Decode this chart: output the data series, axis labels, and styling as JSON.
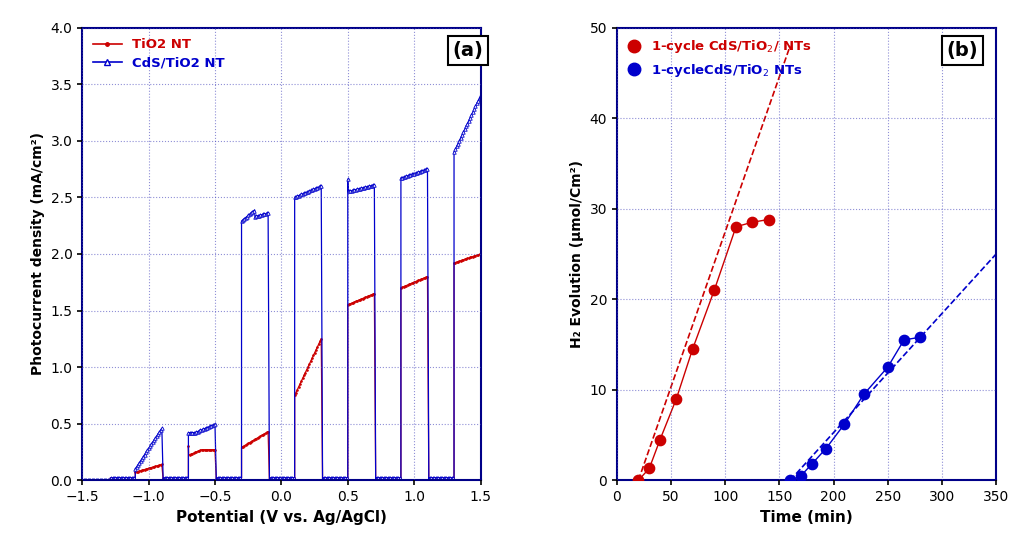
{
  "panel_a": {
    "xlabel": "Potential (V vs. Ag/AgCl)",
    "ylabel": "Photocurrent density (mA/cm²)",
    "xlim": [
      -1.5,
      1.5
    ],
    "ylim": [
      0,
      4
    ],
    "yticks": [
      0,
      0.5,
      1.0,
      1.5,
      2.0,
      2.5,
      3.0,
      3.5,
      4.0
    ],
    "xticks": [
      -1.5,
      -1.0,
      -0.5,
      0.0,
      0.5,
      1.0,
      1.5
    ],
    "red_color": "#cc0000",
    "blue_color": "#0000cc",
    "label_red": "TiO2 NT",
    "label_blue": "CdS/TiO2 NT",
    "panel_label": "(a)"
  },
  "panel_b": {
    "xlabel": "Time (min)",
    "ylabel": "H₂ Evolution (μmol/Cm²)",
    "xlim": [
      0,
      350
    ],
    "ylim": [
      0,
      50
    ],
    "yticks": [
      0,
      10,
      20,
      30,
      40,
      50
    ],
    "xticks": [
      0,
      50,
      100,
      150,
      200,
      250,
      300,
      350
    ],
    "red_x": [
      20,
      30,
      40,
      55,
      70,
      90,
      110,
      125,
      140
    ],
    "red_y": [
      0.0,
      1.3,
      4.5,
      9.0,
      14.5,
      21.0,
      28.0,
      28.5,
      28.8
    ],
    "blue_x": [
      160,
      170,
      180,
      193,
      210,
      228,
      250,
      265,
      280
    ],
    "blue_y": [
      0.0,
      0.5,
      1.8,
      3.5,
      6.2,
      9.5,
      12.5,
      15.5,
      15.8
    ],
    "red_fit_x": [
      20,
      160
    ],
    "red_fit_y": [
      0.0,
      48.0
    ],
    "blue_fit_x": [
      160,
      350
    ],
    "blue_fit_y": [
      0.0,
      25.0
    ],
    "red_color": "#cc0000",
    "blue_color": "#0000cc",
    "label_red": "1-cycle CdS/TiO$_2$/ NTs",
    "label_blue": "1-cycleCdS/TiO$_2$ NTs",
    "panel_label": "(b)"
  }
}
